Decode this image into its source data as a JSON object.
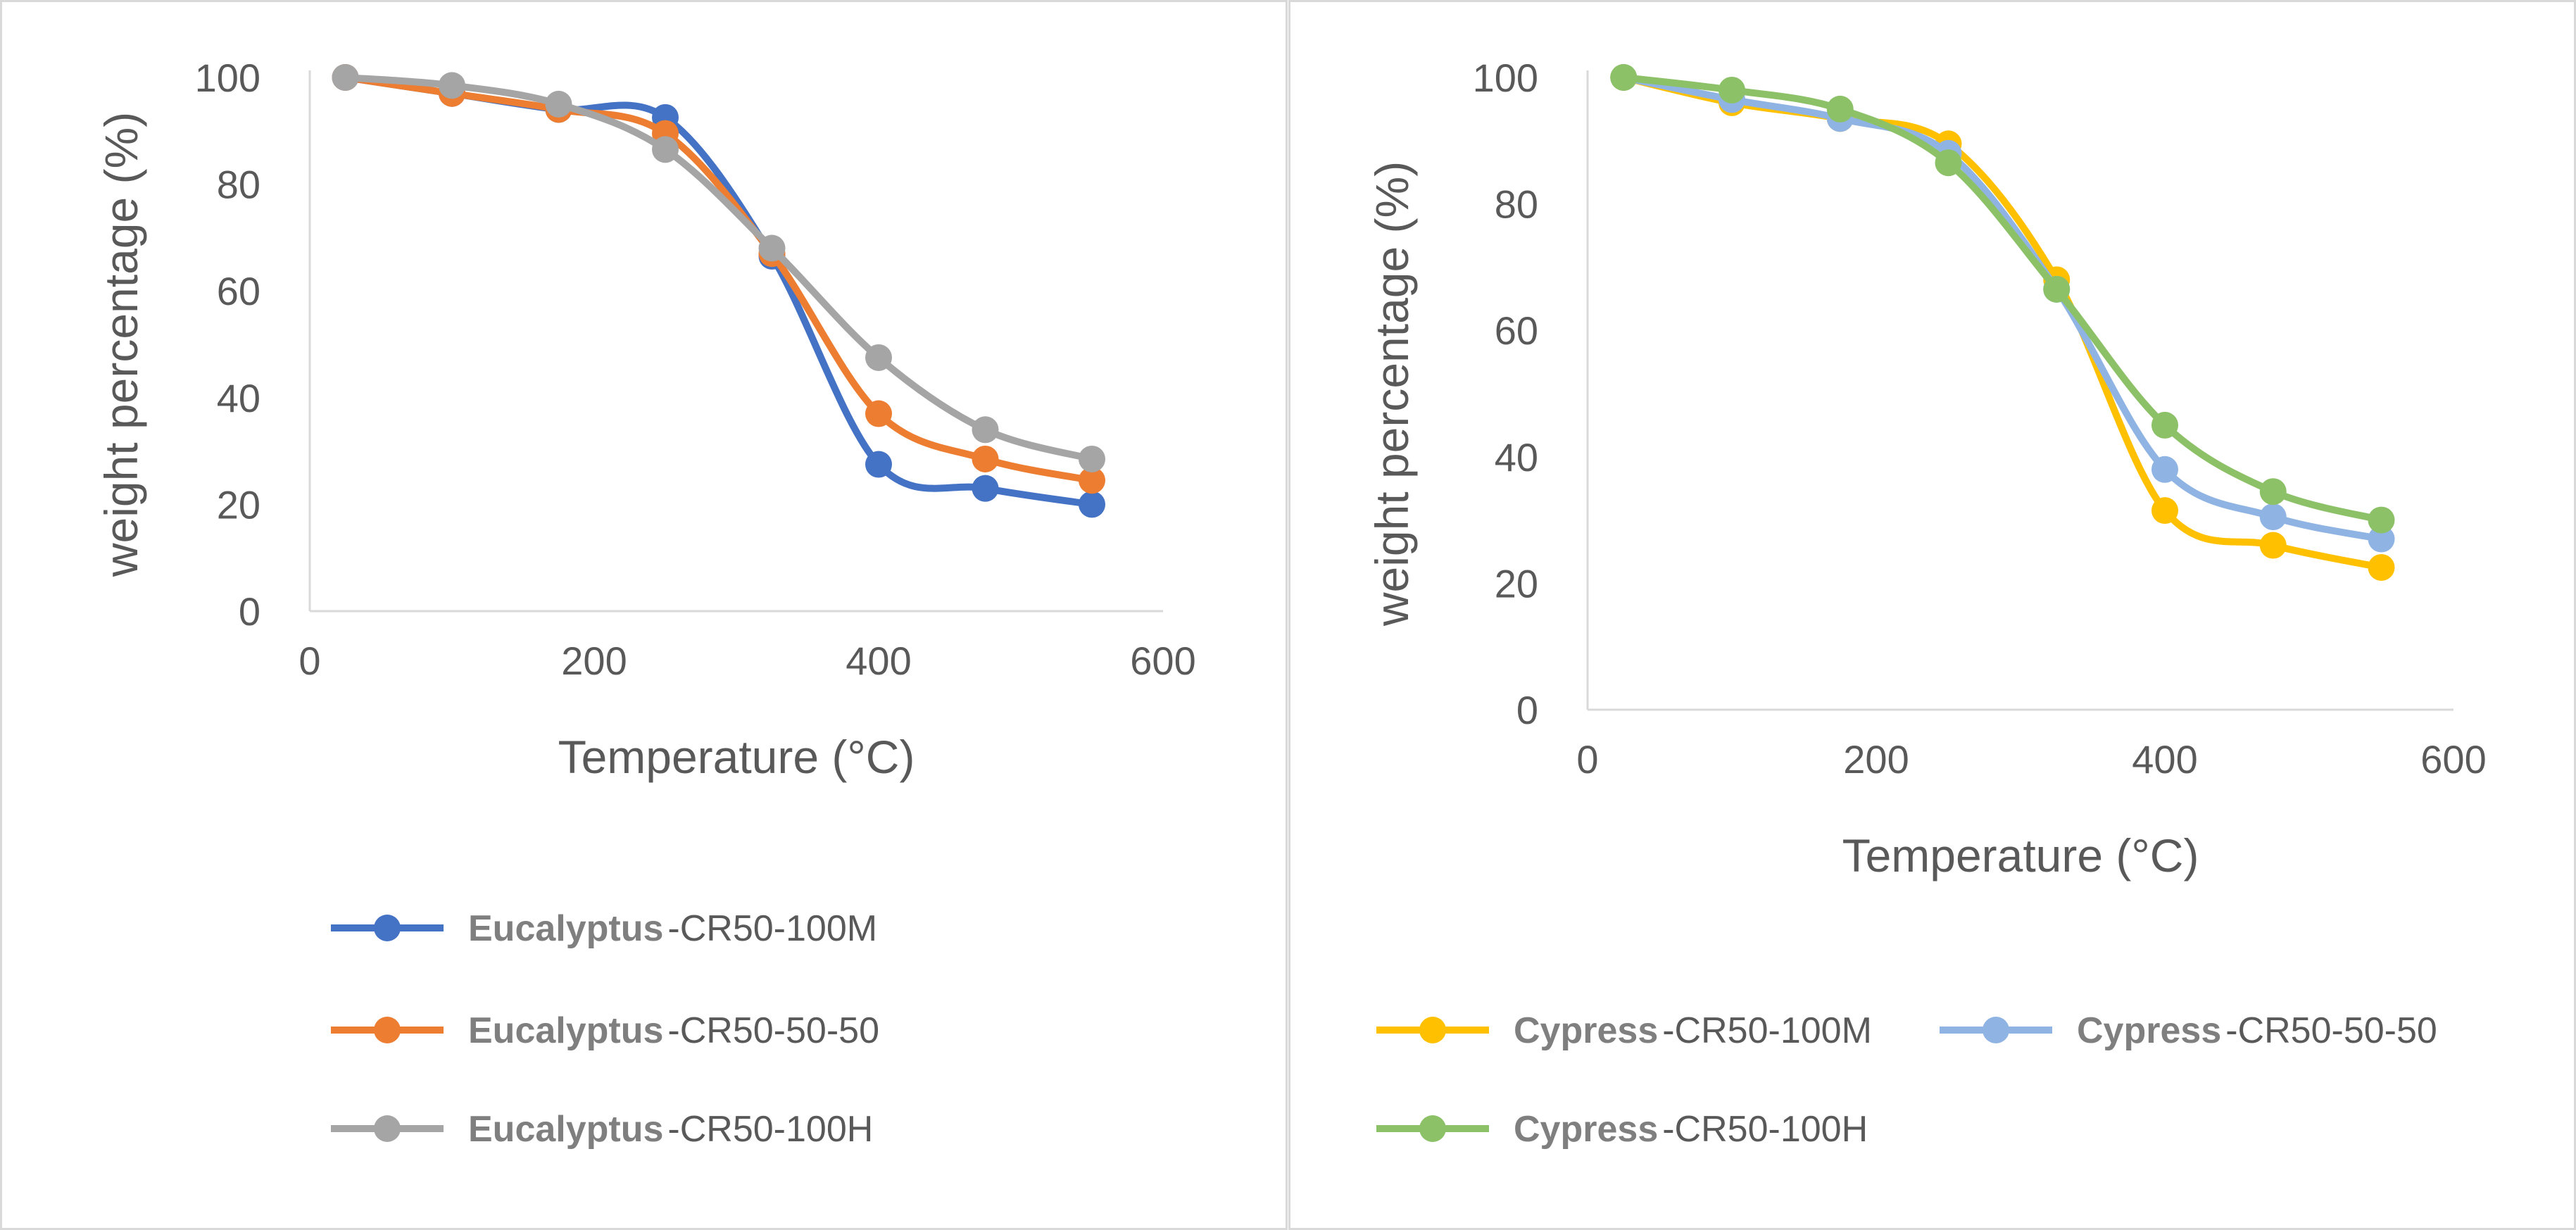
{
  "chart_data": [
    {
      "type": "line",
      "title": "",
      "xlabel": "Temperature (°C)",
      "ylabel": "weight percentage (%)",
      "xlim": [
        0,
        600
      ],
      "ylim": [
        0,
        100
      ],
      "xticks": [
        0,
        200,
        400,
        600
      ],
      "yticks": [
        0,
        20,
        40,
        60,
        80,
        100
      ],
      "grid": false,
      "smooth": true,
      "legend_position": "bottom",
      "x": [
        25,
        100,
        175,
        250,
        325,
        400,
        475,
        550
      ],
      "series": [
        {
          "name": "Eucalyptus",
          "name_suffix": "-CR50-100M",
          "color": "#4472C4",
          "values": [
            100,
            97,
            94,
            92.5,
            66.5,
            27.5,
            23,
            20
          ]
        },
        {
          "name": "Eucalyptus",
          "name_suffix": "-CR50-50-50",
          "color": "#ED7D31",
          "values": [
            100,
            97,
            94,
            89.5,
            67,
            37,
            28.5,
            24.5
          ]
        },
        {
          "name": "Eucalyptus",
          "name_suffix": "-CR50-100H",
          "color": "#A5A5A5",
          "values": [
            100,
            98.5,
            95,
            86.5,
            68,
            47.5,
            34,
            28.5
          ]
        }
      ]
    },
    {
      "type": "line",
      "title": "",
      "xlabel": "Temperature (°C)",
      "ylabel": "weight percentage (%)",
      "xlim": [
        0,
        600
      ],
      "ylim": [
        0,
        100
      ],
      "xticks": [
        0,
        200,
        400,
        600
      ],
      "yticks": [
        0,
        20,
        40,
        60,
        80,
        100
      ],
      "grid": false,
      "smooth": true,
      "legend_position": "bottom",
      "x": [
        25,
        100,
        175,
        250,
        325,
        400,
        475,
        550
      ],
      "series": [
        {
          "name": "Cypress",
          "name_suffix": "-CR50-100M",
          "color": "#FFC000",
          "values": [
            100,
            96,
            93.5,
            89.5,
            68,
            31.5,
            26,
            22.5
          ]
        },
        {
          "name": "Cypress",
          "name_suffix": "-CR50-50-50",
          "color": "#8FB4E3",
          "values": [
            100,
            96.5,
            93.5,
            88,
            66.5,
            38,
            30.5,
            27
          ]
        },
        {
          "name": "Cypress",
          "name_suffix": "-CR50-100H",
          "color": "#8CC168",
          "values": [
            100,
            98,
            95,
            86.5,
            66.5,
            45,
            34.5,
            30
          ]
        }
      ]
    }
  ]
}
